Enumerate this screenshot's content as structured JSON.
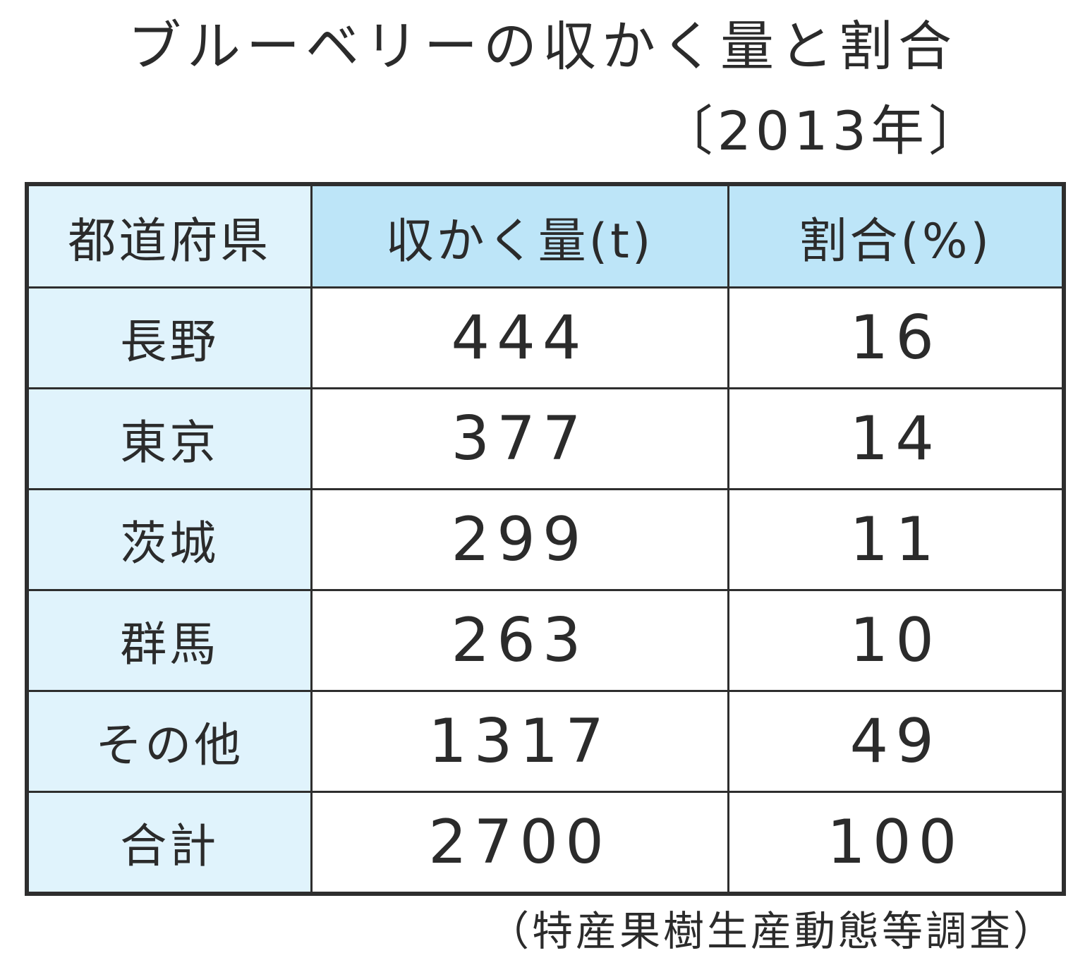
{
  "title": "ブルーベリーの収かく量と割合",
  "subtitle": "〔2013年〕",
  "table": {
    "header": [
      "都道府県",
      "収かく量(t)",
      "割合(%)"
    ],
    "rows": [
      [
        "長野",
        444,
        16
      ],
      [
        "東京",
        377,
        14
      ],
      [
        "茨城",
        299,
        11
      ],
      [
        "群馬",
        263,
        10
      ],
      [
        "その他",
        1317,
        49
      ],
      [
        "合計",
        2700,
        100
      ]
    ]
  },
  "source": "（特産果樹生産動態等調査）"
}
